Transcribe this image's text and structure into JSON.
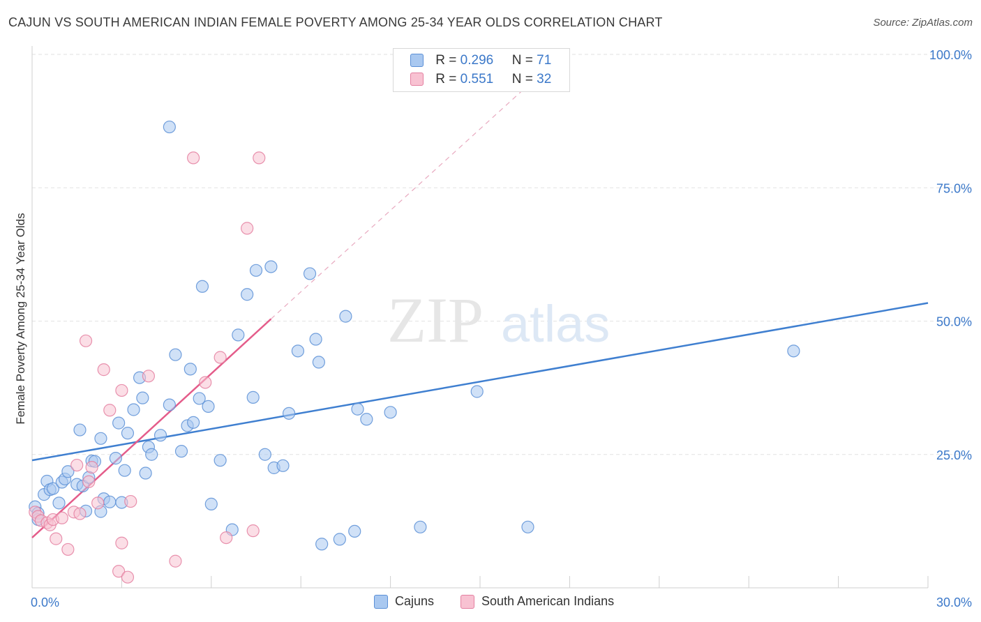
{
  "title": "CAJUN VS SOUTH AMERICAN INDIAN FEMALE POVERTY AMONG 25-34 YEAR OLDS CORRELATION CHART",
  "source": "Source: ZipAtlas.com",
  "legend": {
    "rows": [
      {
        "r_label": "R =",
        "r_value": "0.296",
        "n_label": "N =",
        "n_value": "71"
      },
      {
        "r_label": "R =",
        "r_value": "0.551",
        "n_label": "N =",
        "n_value": "32"
      }
    ]
  },
  "bottom_legend": [
    "Cajuns",
    "South American Indians"
  ],
  "chart_data": {
    "type": "scatter",
    "title": "CAJUN VS SOUTH AMERICAN INDIAN FEMALE POVERTY AMONG 25-34 YEAR OLDS CORRELATION CHART",
    "xlabel": "",
    "ylabel": "Female Poverty Among 25-34 Year Olds",
    "xlim": [
      0,
      30
    ],
    "ylim": [
      0,
      100
    ],
    "x_tick_labels": [
      "0.0%",
      "30.0%"
    ],
    "y_tick_labels": [
      "25.0%",
      "50.0%",
      "75.0%",
      "100.0%"
    ],
    "y_ticks": [
      25,
      50,
      75,
      100
    ],
    "grid": true,
    "legend_placement": "top-center",
    "watermark": "ZIPatlas",
    "colors": {
      "cajun_fill": "#a9c8f0",
      "cajun_stroke": "#5b8fd6",
      "cajun_line": "#3f7fd0",
      "sai_fill": "#f8c2d2",
      "sai_stroke": "#e47fa0",
      "sai_line": "#e45c8a",
      "tick_label": "#3b78c9"
    },
    "series": [
      {
        "name": "Cajuns",
        "points": [
          [
            0.1,
            15.2
          ],
          [
            0.2,
            14.0
          ],
          [
            0.2,
            12.8
          ],
          [
            0.4,
            17.5
          ],
          [
            0.5,
            20.0
          ],
          [
            0.6,
            18.4
          ],
          [
            0.7,
            18.6
          ],
          [
            0.9,
            15.9
          ],
          [
            1.0,
            19.8
          ],
          [
            1.1,
            20.4
          ],
          [
            1.2,
            21.8
          ],
          [
            1.5,
            19.4
          ],
          [
            1.6,
            29.6
          ],
          [
            1.7,
            19.1
          ],
          [
            1.8,
            14.4
          ],
          [
            1.9,
            20.7
          ],
          [
            2.0,
            23.8
          ],
          [
            2.1,
            23.7
          ],
          [
            2.3,
            28.0
          ],
          [
            2.3,
            14.3
          ],
          [
            2.4,
            16.7
          ],
          [
            2.6,
            16.1
          ],
          [
            2.8,
            24.3
          ],
          [
            2.9,
            30.9
          ],
          [
            3.0,
            16.0
          ],
          [
            3.1,
            22.0
          ],
          [
            3.2,
            29.0
          ],
          [
            3.4,
            33.4
          ],
          [
            3.6,
            39.4
          ],
          [
            3.7,
            35.6
          ],
          [
            3.8,
            21.5
          ],
          [
            3.9,
            26.4
          ],
          [
            4.0,
            25.0
          ],
          [
            4.3,
            28.6
          ],
          [
            4.6,
            34.3
          ],
          [
            4.6,
            86.4
          ],
          [
            4.8,
            43.7
          ],
          [
            5.0,
            25.6
          ],
          [
            5.2,
            30.4
          ],
          [
            5.3,
            41.0
          ],
          [
            5.4,
            31.0
          ],
          [
            5.6,
            35.5
          ],
          [
            5.7,
            56.5
          ],
          [
            5.9,
            34.0
          ],
          [
            6.0,
            15.7
          ],
          [
            6.3,
            23.9
          ],
          [
            6.7,
            10.9
          ],
          [
            6.9,
            47.4
          ],
          [
            7.2,
            55.0
          ],
          [
            7.4,
            35.7
          ],
          [
            7.5,
            59.5
          ],
          [
            7.8,
            25.0
          ],
          [
            8.0,
            60.2
          ],
          [
            8.1,
            22.5
          ],
          [
            8.4,
            22.9
          ],
          [
            8.6,
            32.7
          ],
          [
            8.9,
            44.4
          ],
          [
            9.3,
            58.9
          ],
          [
            9.5,
            46.6
          ],
          [
            9.6,
            42.3
          ],
          [
            9.7,
            8.2
          ],
          [
            10.3,
            9.1
          ],
          [
            10.5,
            50.9
          ],
          [
            10.8,
            10.6
          ],
          [
            10.9,
            33.5
          ],
          [
            11.2,
            31.6
          ],
          [
            12.0,
            32.9
          ],
          [
            13.0,
            11.4
          ],
          [
            14.9,
            36.8
          ],
          [
            16.6,
            11.4
          ],
          [
            25.5,
            44.4
          ]
        ]
      },
      {
        "name": "South American Indians",
        "points": [
          [
            0.1,
            14.2
          ],
          [
            0.2,
            13.4
          ],
          [
            0.3,
            12.6
          ],
          [
            0.5,
            12.2
          ],
          [
            0.6,
            11.8
          ],
          [
            0.7,
            12.8
          ],
          [
            0.8,
            9.2
          ],
          [
            1.0,
            13.1
          ],
          [
            1.2,
            7.2
          ],
          [
            1.4,
            14.2
          ],
          [
            1.5,
            23.0
          ],
          [
            1.6,
            13.9
          ],
          [
            1.8,
            46.3
          ],
          [
            1.9,
            19.9
          ],
          [
            2.0,
            22.6
          ],
          [
            2.2,
            15.9
          ],
          [
            2.4,
            40.9
          ],
          [
            2.6,
            33.3
          ],
          [
            2.9,
            3.1
          ],
          [
            3.0,
            8.4
          ],
          [
            3.0,
            37.0
          ],
          [
            3.2,
            2.0
          ],
          [
            3.3,
            16.2
          ],
          [
            3.9,
            39.7
          ],
          [
            4.8,
            5.0
          ],
          [
            5.4,
            80.6
          ],
          [
            5.8,
            38.5
          ],
          [
            6.3,
            43.2
          ],
          [
            6.5,
            9.4
          ],
          [
            7.2,
            67.4
          ],
          [
            7.4,
            10.7
          ],
          [
            7.6,
            80.6
          ]
        ]
      }
    ],
    "trendlines": [
      {
        "series": "Cajuns",
        "x": [
          0,
          30
        ],
        "y": [
          23.9,
          53.4
        ]
      },
      {
        "series": "South American Indians",
        "x": [
          0,
          8.0
        ],
        "y": [
          9.4,
          50.4
        ],
        "extended_to": [
          17.0,
          96.2
        ]
      }
    ]
  }
}
